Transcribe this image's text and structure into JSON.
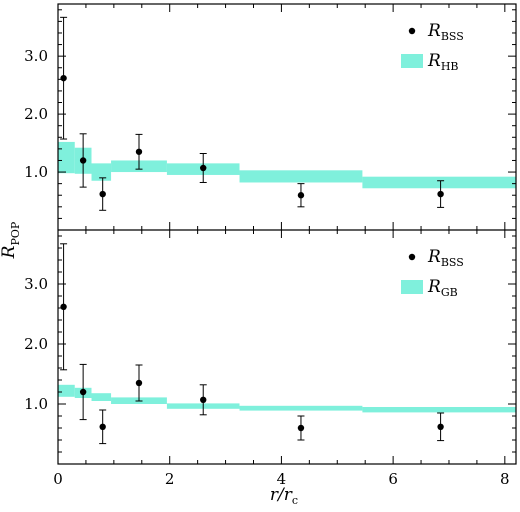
{
  "chart_data": [
    {
      "type": "scatter",
      "panel": "top",
      "ylabel": "R_POP",
      "xlim": [
        0,
        8.2
      ],
      "ylim": [
        0,
        3.9
      ],
      "y_ticks": [
        1.0,
        2.0,
        3.0
      ],
      "y_tick_labels": [
        "1.0",
        "2.0",
        "3.0"
      ],
      "legend": {
        "placement": "top-right",
        "entries": [
          {
            "symbol": "point",
            "text": "R",
            "sub": "BSS"
          },
          {
            "symbol": "band",
            "text": "R",
            "sub": "HB"
          }
        ]
      },
      "points": {
        "name": "R_BSS",
        "x": [
          0.1,
          0.45,
          0.8,
          1.45,
          2.6,
          4.35,
          6.85
        ],
        "y": [
          2.62,
          1.2,
          0.62,
          1.35,
          1.07,
          0.6,
          0.62
        ],
        "yerr": [
          1.05,
          0.46,
          0.28,
          0.3,
          0.25,
          0.2,
          0.23
        ]
      },
      "band": {
        "name": "R_HB",
        "bins": [
          {
            "x0": 0.0,
            "x1": 0.3,
            "y0": 0.98,
            "y1": 1.52
          },
          {
            "x0": 0.3,
            "x1": 0.6,
            "y0": 0.97,
            "y1": 1.42
          },
          {
            "x0": 0.6,
            "x1": 0.95,
            "y0": 0.85,
            "y1": 1.15
          },
          {
            "x0": 0.95,
            "x1": 1.95,
            "y0": 1.0,
            "y1": 1.2
          },
          {
            "x0": 1.95,
            "x1": 3.25,
            "y0": 0.95,
            "y1": 1.15
          },
          {
            "x0": 3.25,
            "x1": 5.45,
            "y0": 0.82,
            "y1": 1.03
          },
          {
            "x0": 5.45,
            "x1": 8.2,
            "y0": 0.72,
            "y1": 0.92
          }
        ]
      }
    },
    {
      "type": "scatter",
      "panel": "bottom",
      "xlabel": "r/r_c",
      "xlim": [
        0,
        8.2
      ],
      "ylim": [
        0,
        3.9
      ],
      "x_ticks": [
        0,
        2,
        4,
        6,
        8
      ],
      "x_tick_labels": [
        "0",
        "2",
        "4",
        "6",
        "8"
      ],
      "y_ticks": [
        1.0,
        2.0,
        3.0
      ],
      "y_tick_labels": [
        "1.0",
        "2.0",
        "3.0"
      ],
      "legend": {
        "placement": "top-right",
        "entries": [
          {
            "symbol": "point",
            "text": "R",
            "sub": "BSS"
          },
          {
            "symbol": "band",
            "text": "R",
            "sub": "GB"
          }
        ]
      },
      "points": {
        "name": "R_BSS",
        "x": [
          0.1,
          0.45,
          0.8,
          1.45,
          2.6,
          4.35,
          6.85
        ],
        "y": [
          2.62,
          1.2,
          0.62,
          1.35,
          1.07,
          0.6,
          0.62
        ],
        "yerr": [
          1.05,
          0.46,
          0.28,
          0.3,
          0.25,
          0.2,
          0.23
        ]
      },
      "band": {
        "name": "R_GB",
        "bins": [
          {
            "x0": 0.0,
            "x1": 0.3,
            "y0": 1.12,
            "y1": 1.32
          },
          {
            "x0": 0.3,
            "x1": 0.6,
            "y0": 1.1,
            "y1": 1.27
          },
          {
            "x0": 0.6,
            "x1": 0.95,
            "y0": 1.05,
            "y1": 1.18
          },
          {
            "x0": 0.95,
            "x1": 1.95,
            "y0": 1.0,
            "y1": 1.11
          },
          {
            "x0": 1.95,
            "x1": 3.25,
            "y0": 0.92,
            "y1": 1.01
          },
          {
            "x0": 3.25,
            "x1": 5.45,
            "y0": 0.89,
            "y1": 0.97
          },
          {
            "x0": 5.45,
            "x1": 8.2,
            "y0": 0.86,
            "y1": 0.95
          }
        ]
      }
    }
  ],
  "shared_ylabel": {
    "text": "R",
    "sub": "POP"
  },
  "shared_xlabel": {
    "text": "r/r",
    "sub": "c"
  },
  "colors": {
    "band": "#7ff0dc",
    "points": "#000000"
  }
}
